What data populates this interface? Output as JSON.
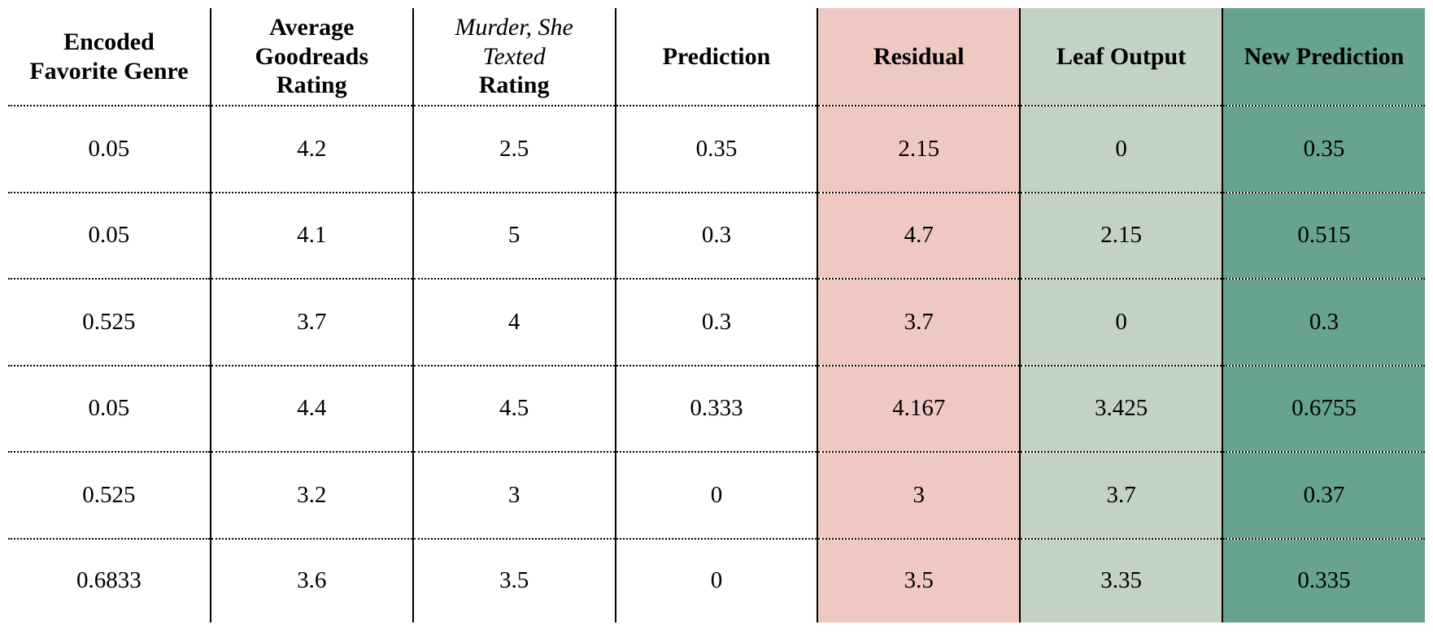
{
  "table": {
    "header": {
      "encoded_favorite_genre": {
        "line1": "Encoded",
        "line2": "Favorite Genre"
      },
      "average_goodreads_rating": {
        "line1": "Average",
        "line2": "Goodreads",
        "line3": "Rating"
      },
      "book_rating": {
        "italic_line1": "Murder, She",
        "italic_line2": "Texted",
        "line3": "Rating"
      },
      "prediction": {
        "line1": "Prediction"
      },
      "residual": {
        "line1": "Residual"
      },
      "leaf_output": {
        "line1": "Leaf Output"
      },
      "new_prediction": {
        "line1": "New Prediction"
      }
    },
    "rows": [
      [
        "0.05",
        "4.2",
        "2.5",
        "0.35",
        "2.15",
        "0",
        "0.35"
      ],
      [
        "0.05",
        "4.1",
        "5",
        "0.3",
        "4.7",
        "2.15",
        "0.515"
      ],
      [
        "0.525",
        "3.7",
        "4",
        "0.3",
        "3.7",
        "0",
        "0.3"
      ],
      [
        "0.05",
        "4.4",
        "4.5",
        "0.333",
        "4.167",
        "3.425",
        "0.6755"
      ],
      [
        "0.525",
        "3.2",
        "3",
        "0",
        "3",
        "3.7",
        "0.37"
      ],
      [
        "0.6833",
        "3.6",
        "3.5",
        "0",
        "3.5",
        "3.35",
        "0.335"
      ]
    ]
  },
  "colors": {
    "residual_bg": "#efc8c3",
    "leaf_output_bg": "#c2d3c3",
    "new_prediction_bg": "#67a38e",
    "grid_line": "#000000",
    "text": "#000000",
    "background": "#ffffff"
  }
}
